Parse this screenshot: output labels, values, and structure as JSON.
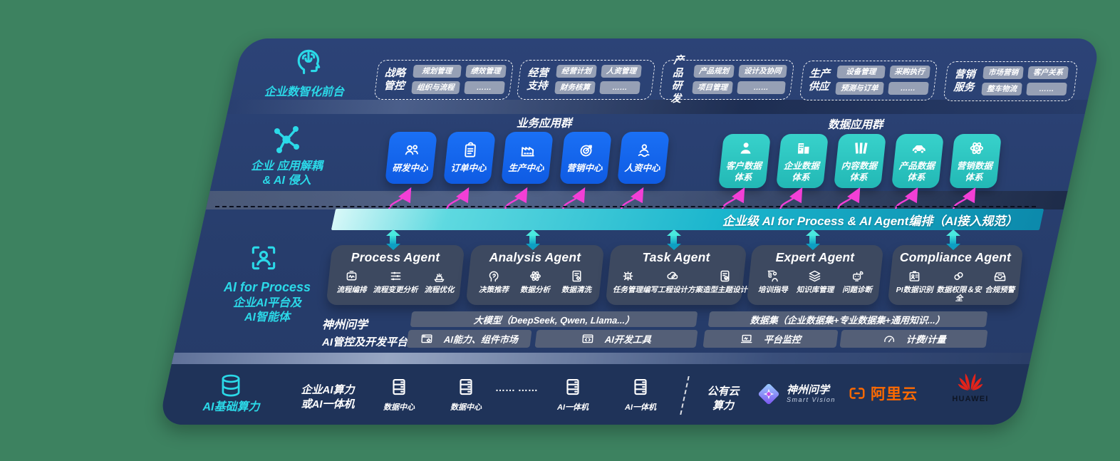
{
  "colors": {
    "accent_teal": "#2BD9E8",
    "card_blue": "#1666F2",
    "card_teal": "#2FC7C1",
    "arrow_magenta": "#F23FD6",
    "bar_teal": "#17B9CE",
    "panel_navy": "#273D6C",
    "alibaba_orange": "#FF6A00",
    "huawei_red": "#E2231A"
  },
  "front_office": {
    "label": "企业数智化前台",
    "icon": "head-brain",
    "groups": [
      {
        "title": "战略管控",
        "items": [
          "规划管理",
          "绩效管理",
          "组织与流程",
          "……"
        ]
      },
      {
        "title": "经营支持",
        "items": [
          "经营计划",
          "人资管理",
          "财务核算",
          "……"
        ]
      },
      {
        "title": "产品研发",
        "items": [
          "产品规划",
          "设计及协同",
          "项目管理",
          "……"
        ]
      },
      {
        "title": "生产供应",
        "items": [
          "设备管理",
          "采购执行",
          "预测与订单",
          "……"
        ]
      },
      {
        "title": "营销服务",
        "items": [
          "市场营销",
          "客户关系",
          "整车物流",
          "……"
        ]
      }
    ]
  },
  "decouple": {
    "label_line1": "企业 应用解耦",
    "label_line2": "& AI 侵入",
    "icon": "molecule",
    "business_title": "业务应用群",
    "business_cards": [
      {
        "label": "研发中心",
        "icon": "people"
      },
      {
        "label": "订单中心",
        "icon": "clipboard"
      },
      {
        "label": "生产中心",
        "icon": "factory"
      },
      {
        "label": "营销中心",
        "icon": "target"
      },
      {
        "label": "人资中心",
        "icon": "person-wave"
      }
    ],
    "data_title": "数据应用群",
    "data_cards": [
      {
        "label": "客户数据体系",
        "icon": "person"
      },
      {
        "label": "企业数据体系",
        "icon": "building"
      },
      {
        "label": "内容数据体系",
        "icon": "books"
      },
      {
        "label": "产品数据体系",
        "icon": "car"
      },
      {
        "label": "营销数据体系",
        "icon": "atom"
      }
    ]
  },
  "ai_layer": {
    "icon": "person-scan",
    "side_title": "AI for Process",
    "side_sub_line1": "企业AI平台及",
    "side_sub_line2": "AI智能体",
    "bar_text": "企业级 AI for Process & AI Agent编排（AI接入规范）",
    "agents": [
      {
        "name": "Process Agent",
        "items": [
          {
            "label": "流程编排",
            "icon": "box-wave"
          },
          {
            "label": "流程变更分析",
            "icon": "sliders"
          },
          {
            "label": "流程优化",
            "icon": "stack"
          }
        ]
      },
      {
        "name": "Analysis Agent",
        "items": [
          {
            "label": "决策推荐",
            "icon": "head-gear"
          },
          {
            "label": "数据分析",
            "icon": "atom"
          },
          {
            "label": "数据清洗",
            "icon": "doc-gear"
          }
        ]
      },
      {
        "name": "Task Agent",
        "items": [
          {
            "label": "任务管理",
            "icon": "grid-robot"
          },
          {
            "label": "编写工程设计方案",
            "icon": "cloud-edit"
          },
          {
            "label": "造型主题设计",
            "icon": "doc-check"
          }
        ]
      },
      {
        "name": "Expert Agent",
        "items": [
          {
            "label": "培训指导",
            "icon": "person-board"
          },
          {
            "label": "知识库管理",
            "icon": "layers"
          },
          {
            "label": "问题诊断",
            "icon": "robot-wrench"
          }
        ]
      },
      {
        "name": "Compliance Agent",
        "items": [
          {
            "label": "PI数据识别",
            "icon": "id-card"
          },
          {
            "label": "数据权限＆安全",
            "icon": "link-circles"
          },
          {
            "label": "合规预警",
            "icon": "inbox"
          }
        ]
      }
    ],
    "platform": {
      "label_line1": "神州问学",
      "label_line2": "AI管控及开发平台",
      "model_bar": "大模型（DeepSeek, Qwen, Llama...）",
      "model_cells": [
        {
          "label": "AI能力、组件市场",
          "icon": "window-gear"
        },
        {
          "label": "AI开发工具",
          "icon": "window-code"
        }
      ],
      "dataset_bar": "数据集（企业数据集+专业数据集+通用知识...）",
      "dataset_cells": [
        {
          "label": "平台监控",
          "icon": "monitor"
        },
        {
          "label": "计费/计量",
          "icon": "gauge"
        }
      ]
    }
  },
  "infra": {
    "label": "AI基础算力",
    "icon": "database",
    "left_line1": "企业AI算力",
    "left_line2": "或AI一体机",
    "nodes": [
      {
        "label": "数据中心",
        "icon": "server"
      },
      {
        "label": "数据中心",
        "icon": "server"
      },
      {
        "label": "AI一体机",
        "icon": "server"
      },
      {
        "label": "AI一体机",
        "icon": "server"
      }
    ],
    "ellipsis": "…… ……",
    "cloud_line1": "公有云",
    "cloud_line2": "算力",
    "vendors": {
      "sv_name": "神州问学",
      "sv_sub": "Smart Vision",
      "sv_icon": "sv-diamond",
      "alibaba": "阿里云",
      "alibaba_icon": "ali-bracket",
      "huawei": "HUAWEI",
      "huawei_icon": "huawei-flower"
    }
  }
}
